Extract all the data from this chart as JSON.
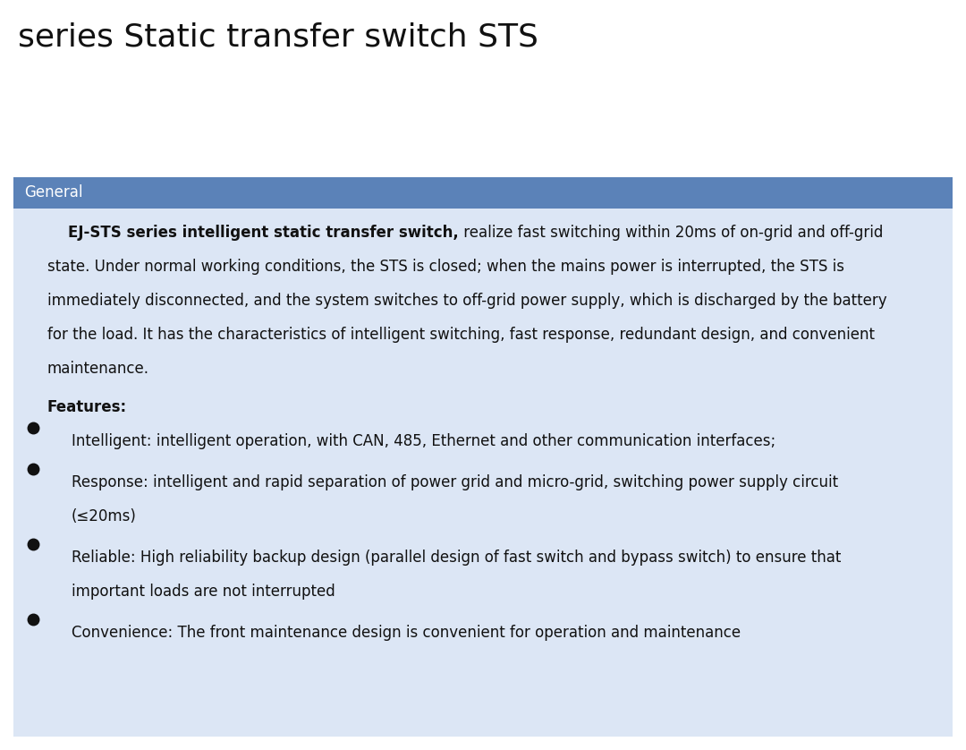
{
  "title": "series Static transfer switch STS",
  "title_fontsize": 26,
  "title_color": "#111111",
  "bg_color": "#ffffff",
  "section_header_text": "General",
  "section_header_bg": "#5b82b8",
  "section_header_text_color": "#ffffff",
  "section_header_fontsize": 12,
  "content_bg": "#dce6f5",
  "content_fontsize": 12,
  "content_color": "#111111",
  "bullet_color": "#111111",
  "features_label": "Features:",
  "intro_bold": "    EJ-STS series intelligent static transfer switch,",
  "intro_lines": [
    " realize fast switching within 20ms of on-grid and off-grid",
    "state. Under normal working conditions, the STS is closed; when the mains power is interrupted, the STS is",
    "immediately disconnected, and the system switches to off-grid power supply, which is discharged by the battery",
    "for the load. It has the characteristics of intelligent switching, fast response, redundant design, and convenient",
    "maintenance."
  ],
  "feature_items": [
    [
      "Intelligent: intelligent operation, with CAN, 485, Ethernet and other communication interfaces;"
    ],
    [
      "Response: intelligent and rapid separation of power grid and micro-grid, switching power supply circuit",
      "(≤20ms)"
    ],
    [
      "Reliable: High reliability backup design (parallel design of fast switch and bypass switch) to ensure that",
      "important loads are not interrupted"
    ],
    [
      "Convenience: The front maintenance design is convenient for operation and maintenance"
    ]
  ]
}
